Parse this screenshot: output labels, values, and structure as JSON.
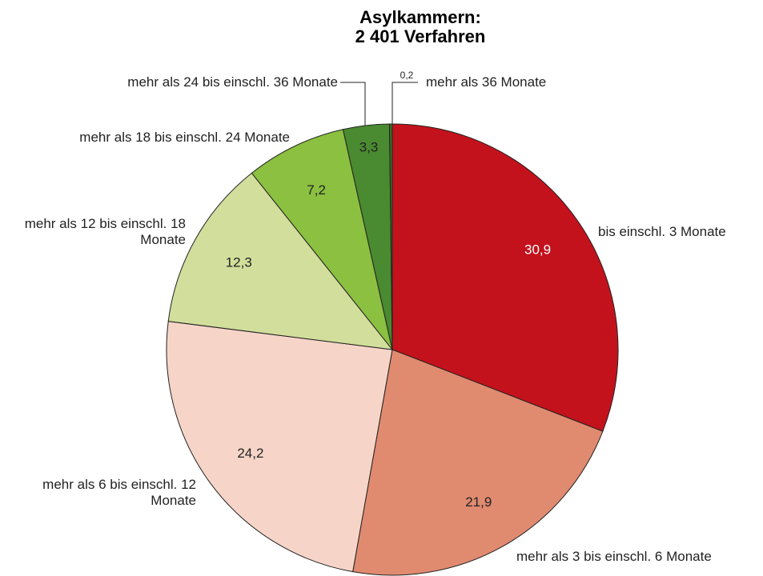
{
  "chart_data": {
    "type": "pie",
    "title": [
      "Asylkammern:",
      "2 401 Verfahren"
    ],
    "categories": [
      "bis einschl. 3 Monate",
      "mehr als 3 bis einschl. 6 Monate",
      "mehr als 6 bis einschl. 12 Monate",
      "mehr als 12 bis einschl. 18 Monate",
      "mehr als 18 bis einschl. 24 Monate",
      "mehr als 24 bis einschl. 36 Monate",
      "mehr als 36 Monate"
    ],
    "values": [
      30.9,
      21.9,
      24.2,
      12.3,
      7.2,
      3.3,
      0.2
    ],
    "value_labels": [
      "30,9",
      "21,9",
      "24,2",
      "12,3",
      "7,2",
      "3,3",
      "0,2"
    ],
    "colors": [
      "#c3121c",
      "#e08a70",
      "#f6d5c8",
      "#d2df9c",
      "#8bc040",
      "#4a8a30",
      "#3a6d26"
    ]
  }
}
